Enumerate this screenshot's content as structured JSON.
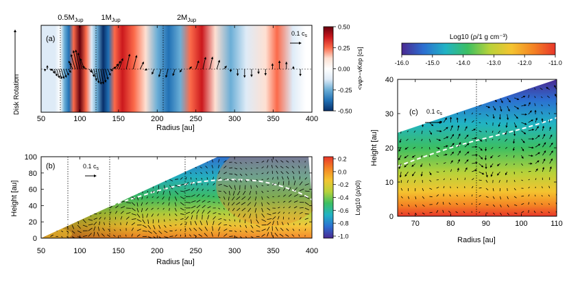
{
  "chart_data": [
    {
      "type": "heatmap",
      "panel_label": "(a)",
      "xlabel": "Radius [au]",
      "xlim": [
        50,
        400
      ],
      "xticks": [
        50,
        100,
        150,
        200,
        250,
        300,
        350,
        400
      ],
      "side_label": "Disk Rotation",
      "planet_labels": [
        {
          "text": "0.5M",
          "sub": "Jup",
          "radius": 88
        },
        {
          "text": "1M",
          "sub": "Jup",
          "radius": 140
        },
        {
          "text": "2M",
          "sub": "Jup",
          "radius": 238
        }
      ],
      "arrow_scale_label": "0.1 c",
      "arrow_scale_sub": "s",
      "colorbar": {
        "label": "<vφ>−vKep [cs]",
        "range": [
          -0.5,
          0.5
        ],
        "ticks": [
          "0.50",
          "0.25",
          "0.00",
          "-0.25",
          "-0.50"
        ],
        "colors": [
          "#08306b",
          "#2171b5",
          "#6baed6",
          "#deebf7",
          "#ffffff",
          "#fee0d2",
          "#fb6a4a",
          "#cb181d",
          "#67000d"
        ]
      },
      "bands": [
        {
          "r": 55,
          "v": -0.1
        },
        {
          "r": 62,
          "v": -0.16
        },
        {
          "r": 68,
          "v": -0.12
        },
        {
          "r": 75,
          "v": -0.06
        },
        {
          "r": 80,
          "v": -0.3
        },
        {
          "r": 86,
          "v": -0.42
        },
        {
          "r": 92,
          "v": 0.3
        },
        {
          "r": 100,
          "v": 0.5
        },
        {
          "r": 108,
          "v": 0.2
        },
        {
          "r": 115,
          "v": -0.15
        },
        {
          "r": 122,
          "v": -0.3
        },
        {
          "r": 130,
          "v": -0.45
        },
        {
          "r": 137,
          "v": -0.38
        },
        {
          "r": 145,
          "v": 0.3
        },
        {
          "r": 155,
          "v": 0.4
        },
        {
          "r": 170,
          "v": 0.25
        },
        {
          "r": 185,
          "v": 0.08
        },
        {
          "r": 200,
          "v": -0.25
        },
        {
          "r": 215,
          "v": -0.4
        },
        {
          "r": 230,
          "v": -0.2
        },
        {
          "r": 243,
          "v": 0.2
        },
        {
          "r": 258,
          "v": 0.32
        },
        {
          "r": 275,
          "v": 0.1
        },
        {
          "r": 295,
          "v": -0.25
        },
        {
          "r": 315,
          "v": -0.15
        },
        {
          "r": 340,
          "v": 0.1
        },
        {
          "r": 355,
          "v": 0.2
        },
        {
          "r": 375,
          "v": -0.1
        },
        {
          "r": 392,
          "v": 0.05
        }
      ]
    },
    {
      "type": "heatmap",
      "panel_label": "(b)",
      "xlabel": "Radius [au]",
      "ylabel": "Height [au]",
      "xlim": [
        50,
        400
      ],
      "ylim": [
        0,
        100
      ],
      "xticks": [
        50,
        100,
        150,
        200,
        250,
        300,
        350,
        400
      ],
      "yticks": [
        0,
        20,
        40,
        60,
        80,
        100
      ],
      "planet_radii": [
        88,
        140,
        238
      ],
      "arrow_scale_label": "0.1 c",
      "arrow_scale_sub": "s",
      "colorbar": {
        "label": "Log10 (ρ/ρ0)",
        "range": [
          -1.0,
          0.2
        ],
        "ticks": [
          "0.2",
          "0.0",
          "-0.2",
          "-0.4",
          "-0.6",
          "-0.8",
          "-1.0"
        ],
        "colors": [
          "#4b2991",
          "#2c6fd1",
          "#21b3c4",
          "#3cbf62",
          "#b7d23a",
          "#f4c430",
          "#f48424",
          "#e8362a"
        ]
      }
    },
    {
      "type": "heatmap",
      "panel_label": "(c)",
      "xlabel": "Radius [au]",
      "ylabel": "Height [au]",
      "xlim": [
        65,
        110
      ],
      "ylim": [
        0,
        40
      ],
      "xticks": [
        70,
        80,
        90,
        100,
        110
      ],
      "yticks": [
        0,
        10,
        20,
        30,
        40
      ],
      "planet_radius": 87,
      "arrow_scale_label": "0.1 c",
      "arrow_scale_sub": "s",
      "colorbar": {
        "label": "Log10 (ρ/1 g cm⁻³)",
        "range": [
          -16.0,
          -11.0
        ],
        "ticks": [
          "-16.0",
          "-15.0",
          "-14.0",
          "-13.0",
          "-12.0",
          "-11.0"
        ],
        "colors": [
          "#4b2991",
          "#2c6fd1",
          "#21b3c4",
          "#3cbf62",
          "#b7d23a",
          "#f4c430",
          "#f48424",
          "#e8362a"
        ]
      }
    }
  ]
}
